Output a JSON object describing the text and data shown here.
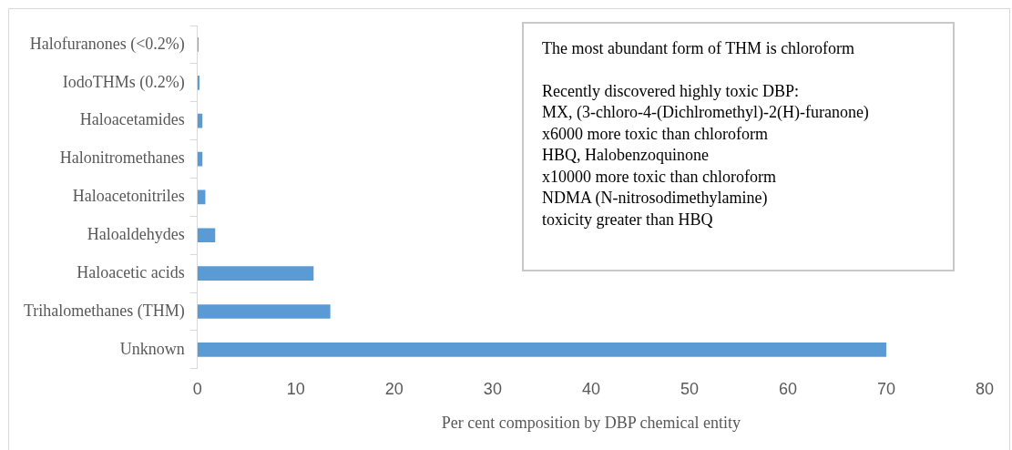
{
  "chart_data": {
    "type": "bar",
    "orientation": "horizontal",
    "xlabel": "Per cent composition by DBP chemical entity",
    "categories": [
      "Halofuranones (<0.2%)",
      "IodoTHMs (0.2%)",
      "Haloacetamides",
      "Halonitromethanes",
      "Haloacetonitriles",
      "Haloaldehydes",
      "Haloacetic acids",
      "Trihalomethanes (THM)",
      "Unknown"
    ],
    "values": [
      0.1,
      0.2,
      0.5,
      0.5,
      0.8,
      1.8,
      11.8,
      13.5,
      70
    ],
    "color": "#5b9bd5",
    "xlim": [
      0,
      80
    ],
    "xticks": [
      0,
      10,
      20,
      30,
      40,
      50,
      60,
      70,
      80
    ],
    "grid": false,
    "legend": false,
    "annotations": [
      "The most abundant form of THM is chloroform",
      "Recently discovered highly toxic DBP:",
      "MX, (3-chloro-4-(Dichlromethyl)-2(H)-furanone)",
      "x6000 more toxic than chloroform",
      "HBQ, Halobenzoquinone",
      "x10000 more toxic than chloroform",
      "NDMA (N-nitrosodimethylamine)",
      "toxicity greater than HBQ"
    ]
  }
}
